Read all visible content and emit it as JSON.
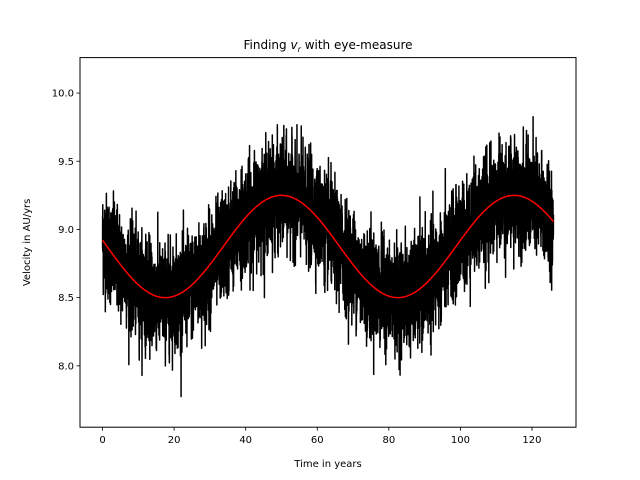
{
  "chart_data": {
    "type": "line",
    "title": "Finding v_r with eye-measure",
    "title_parts": {
      "before": "Finding ",
      "var": "v",
      "sub": "r",
      "after": " with eye-measure"
    },
    "xlabel": "Time in years",
    "ylabel": "Velocity in AU/yrs",
    "xlim": [
      -6.3,
      132.3
    ],
    "ylim": [
      7.55,
      10.26
    ],
    "xticks": [
      0,
      20,
      40,
      60,
      80,
      100,
      120
    ],
    "yticks": [
      8.0,
      8.5,
      9.0,
      9.5,
      10.0
    ],
    "xtick_labels": [
      "0",
      "20",
      "40",
      "60",
      "80",
      "100",
      "120"
    ],
    "ytick_labels": [
      "8.0",
      "8.5",
      "9.0",
      "9.5",
      "10.0"
    ],
    "grid": false,
    "series": [
      {
        "style": "noisy-data",
        "color": "#000000",
        "x_range": [
          0,
          126
        ],
        "model": {
          "offset": 8.875,
          "amplitude": 0.375,
          "period": 65.0,
          "peak_at": 50.0
        },
        "noise_envelope": 0.45,
        "y_min_observed": 7.68,
        "y_max_observed": 10.14
      },
      {
        "style": "model-curve",
        "color": "#ff0000",
        "x_range": [
          0,
          126
        ],
        "model": {
          "offset": 8.875,
          "amplitude": 0.375,
          "period": 65.0,
          "peak_at": 50.0
        },
        "key_points": [
          {
            "x": 0,
            "y": 8.92
          },
          {
            "x": 17.5,
            "y": 8.5
          },
          {
            "x": 50,
            "y": 9.25
          },
          {
            "x": 82.5,
            "y": 8.5
          },
          {
            "x": 115,
            "y": 9.25
          },
          {
            "x": 126,
            "y": 9.05
          }
        ]
      }
    ]
  }
}
